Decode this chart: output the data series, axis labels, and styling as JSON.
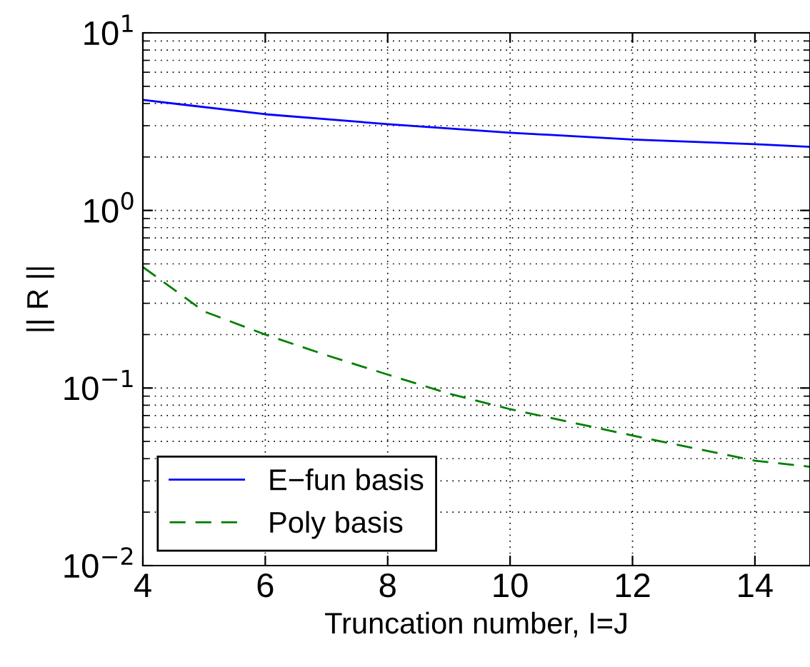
{
  "chart_data": {
    "type": "line",
    "xlabel": "Truncation number, I=J",
    "ylabel": "|| R ||",
    "log": "y",
    "grid": true,
    "legend": "bottom left",
    "xlim": [
      4,
      14.9
    ],
    "xticks": [
      4,
      6,
      8,
      10,
      12,
      14
    ],
    "ylim": [
      0.01,
      10
    ],
    "yticks": [
      {
        "value": 0.01,
        "label": "10$^{−2}$"
      },
      {
        "value": 0.1,
        "label": "10$^{−1}$"
      },
      {
        "value": 1,
        "label": "10$^{0}$"
      },
      {
        "value": 10,
        "label": "10$^{1}$"
      }
    ],
    "series": [
      {
        "name": "E−fun basis",
        "color": "#0000ff",
        "line_style": "solid",
        "x": [
          4,
          6,
          8,
          10,
          12,
          14,
          14.9
        ],
        "values": [
          4.19,
          3.48,
          3.06,
          2.74,
          2.51,
          2.36,
          2.28
        ]
      },
      {
        "name": "Poly basis",
        "color": "#008000",
        "line_style": "dashed",
        "x": [
          4,
          5,
          6,
          7,
          8,
          9,
          10,
          12,
          14,
          14.9
        ],
        "values": [
          0.48,
          0.27,
          0.2,
          0.153,
          0.119,
          0.093,
          0.076,
          0.054,
          0.039,
          0.036
        ]
      }
    ]
  }
}
